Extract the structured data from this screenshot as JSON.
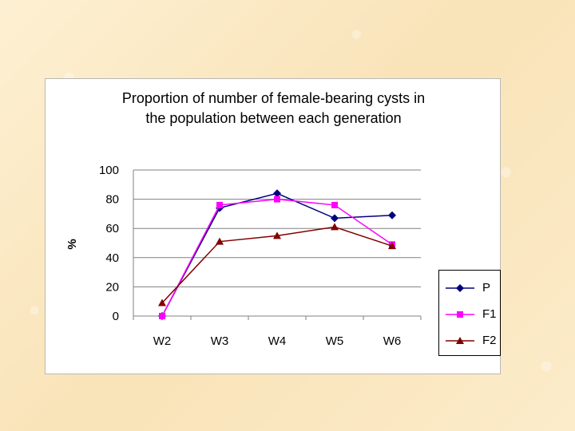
{
  "colors": {
    "P": "#000080",
    "F1": "#ff00ff",
    "F2": "#800000",
    "grid": "#808080"
  },
  "chart_data": {
    "type": "line",
    "title_lines": [
      "Proportion of number of female-bearing cysts in",
      "the population between each generation"
    ],
    "xlabel": "",
    "ylabel": "%",
    "categories": [
      "W2",
      "W3",
      "W4",
      "W5",
      "W6"
    ],
    "ylim": [
      0,
      100
    ],
    "yticks": [
      0,
      20,
      40,
      60,
      80,
      100
    ],
    "grid": true,
    "legend_position": "right",
    "series": [
      {
        "name": "P",
        "marker": "diamond",
        "values": [
          0,
          74,
          84,
          67,
          69
        ]
      },
      {
        "name": "F1",
        "marker": "square",
        "values": [
          0,
          76,
          80,
          76,
          49
        ]
      },
      {
        "name": "F2",
        "marker": "triangle",
        "values": [
          9,
          51,
          55,
          61,
          48
        ]
      }
    ]
  }
}
